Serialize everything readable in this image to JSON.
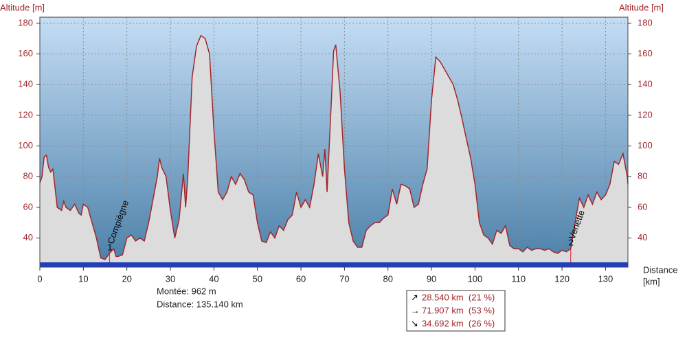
{
  "chart_data": {
    "type": "area",
    "y_label": "Altitude [m]",
    "y2_label": "Altitude [m]",
    "x_label": "Distance",
    "x_unit": "[km]",
    "line_color": "#a3262a",
    "fill_color": "#dcdcdc",
    "grid": true,
    "xlim": [
      0,
      135.14
    ],
    "xticks": [
      0,
      10,
      20,
      30,
      40,
      50,
      60,
      70,
      80,
      90,
      100,
      110,
      120,
      130
    ],
    "ylim": [
      21,
      184
    ],
    "yticks": [
      40,
      60,
      80,
      100,
      120,
      140,
      160,
      180
    ],
    "y2lim": [
      21,
      184
    ],
    "y2ticks": [
      40,
      60,
      80,
      100,
      120,
      140,
      160,
      180
    ],
    "x": [
      0,
      0.5,
      1,
      1.5,
      2,
      2.5,
      3,
      4,
      5,
      5.5,
      6,
      7,
      8,
      9,
      9.5,
      10,
      11,
      12,
      13,
      14,
      15,
      16,
      17,
      17.5,
      18,
      19,
      20,
      21,
      22,
      23,
      24,
      25,
      26,
      27,
      27.5,
      28,
      29,
      30,
      31,
      32,
      33,
      33.5,
      34,
      35,
      36,
      37,
      38,
      39,
      40,
      41,
      42,
      43,
      44,
      45,
      46,
      47,
      48,
      49,
      50,
      51,
      52,
      53,
      54,
      55,
      56,
      57,
      58,
      59,
      60,
      61,
      62,
      63,
      64,
      65,
      65.5,
      66,
      67,
      67.5,
      68,
      69,
      70,
      71,
      72,
      73,
      74,
      75,
      76,
      77,
      78,
      79,
      80,
      81,
      82,
      83,
      84,
      85,
      86,
      87,
      88,
      89,
      90,
      91,
      92,
      93,
      94,
      95,
      96,
      97,
      98,
      99,
      100,
      101,
      102,
      103,
      104,
      105,
      106,
      107,
      108,
      109,
      110,
      111,
      112,
      113,
      114,
      115,
      116,
      117,
      118,
      119,
      120,
      121,
      122,
      123,
      124,
      125,
      126,
      127,
      128,
      129,
      130,
      131,
      132,
      133,
      134,
      135,
      135.14
    ],
    "values": [
      76,
      80,
      93,
      94,
      86,
      83,
      85,
      60,
      58,
      64,
      60,
      58,
      62,
      56,
      55,
      62,
      60,
      50,
      40,
      27,
      26,
      30,
      33,
      28,
      28,
      29,
      40,
      42,
      38,
      40,
      38,
      50,
      65,
      80,
      92,
      86,
      80,
      58,
      40,
      52,
      82,
      60,
      80,
      145,
      165,
      172,
      170,
      160,
      110,
      70,
      65,
      70,
      80,
      75,
      82,
      78,
      70,
      68,
      50,
      38,
      37,
      44,
      40,
      48,
      45,
      52,
      55,
      70,
      60,
      65,
      60,
      75,
      95,
      80,
      98,
      70,
      130,
      162,
      166,
      135,
      85,
      50,
      38,
      34,
      34,
      45,
      48,
      50,
      50,
      53,
      55,
      72,
      62,
      75,
      74,
      72,
      60,
      62,
      75,
      85,
      130,
      158,
      155,
      150,
      145,
      140,
      130,
      118,
      105,
      92,
      75,
      50,
      42,
      40,
      36,
      45,
      43,
      48,
      35,
      33,
      33,
      31,
      34,
      32,
      33,
      33,
      32,
      33,
      31,
      30,
      32,
      31,
      33,
      50,
      66,
      60,
      68,
      62,
      70,
      65,
      68,
      75,
      90,
      88,
      95,
      80,
      75
    ],
    "waypoints": [
      {
        "number": 1,
        "label": "Compiègne",
        "x": 16
      },
      {
        "number": 2,
        "label": "Venette",
        "x": 122
      }
    ],
    "summary": [
      "Montée: 962 m",
      "Distance: 135.140 km"
    ],
    "legs": [
      "28.540 km  (21 %)",
      "71.907 km  (53 %)",
      "34.692 km  (26 %)"
    ]
  }
}
